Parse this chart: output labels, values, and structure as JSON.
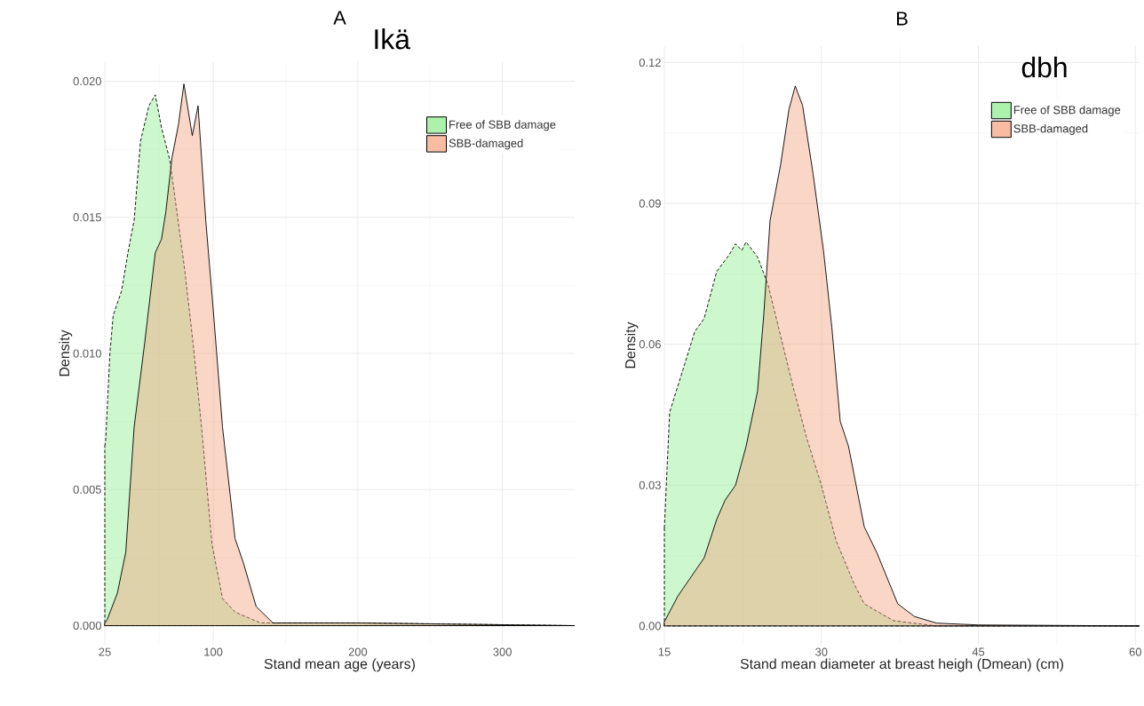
{
  "chart_data": [
    {
      "type": "area",
      "title": "A",
      "annotations": [
        "Ikä"
      ],
      "xlabel": "Stand mean age (years)",
      "ylabel": "Density",
      "xlim": [
        25,
        350
      ],
      "xticks": [
        25,
        100,
        200,
        300
      ],
      "ylim": [
        -0.0007,
        0.0207
      ],
      "yticks": [
        {
          "value": 0,
          "label": "0.000"
        },
        {
          "value": 0.005,
          "label": "0.005"
        },
        {
          "value": 0.01,
          "label": "0.010"
        },
        {
          "value": 0.015,
          "label": "0.015"
        },
        {
          "value": 0.02,
          "label": "0.020"
        }
      ],
      "grid": true,
      "legend": "top right",
      "series": [
        {
          "name": "Free of SBB damage",
          "color": "#90ee90",
          "line_style": "dashed",
          "x": [
            25,
            25.6,
            28.5,
            30.8,
            36.6,
            41,
            45.3,
            49.7,
            55.5,
            59.9,
            64.2,
            70,
            80.2,
            86,
            91.9,
            99.1,
            106.4,
            115.1,
            132.6,
            200,
            350
          ],
          "values": [
            0.0066,
            0.0068,
            0.01,
            0.0114,
            0.0123,
            0.0137,
            0.0149,
            0.0178,
            0.0191,
            0.0195,
            0.0183,
            0.0171,
            0.0131,
            0.0104,
            0.0073,
            0.003,
            0.001,
            0.0005,
            0.0001,
            0.0001,
            0
          ]
        },
        {
          "name": "SBB-damaged",
          "color": "#f4a582",
          "line_style": "solid",
          "x": [
            25,
            26.5,
            33.7,
            39.5,
            45.3,
            52.6,
            59.9,
            64.2,
            67.2,
            71.5,
            75.9,
            79.7,
            85.5,
            89.5,
            94.8,
            100,
            106.4,
            115.1,
            120.9,
            129.7,
            141.3,
            200,
            350
          ],
          "values": [
            0.0001,
            0.0002,
            0.0012,
            0.0027,
            0.0073,
            0.0104,
            0.0137,
            0.0142,
            0.0152,
            0.0172,
            0.0184,
            0.0199,
            0.018,
            0.0191,
            0.0149,
            0.0116,
            0.0073,
            0.0032,
            0.0023,
            0.0007,
            0.0001,
            0.0001,
            0
          ]
        }
      ]
    },
    {
      "type": "area",
      "title": "B",
      "annotations": [
        "dbh"
      ],
      "xlabel": "Stand mean diameter at breast heigh (Dmean) (cm)",
      "ylabel": "Density",
      "xlim": [
        15,
        60.4
      ],
      "xticks": [
        15,
        30,
        45,
        60
      ],
      "ylim": [
        -0.004,
        0.1235
      ],
      "yticks": [
        {
          "value": 0,
          "label": "0.00"
        },
        {
          "value": 0.03,
          "label": "0.03"
        },
        {
          "value": 0.06,
          "label": "0.06"
        },
        {
          "value": 0.09,
          "label": "0.09"
        },
        {
          "value": 0.12,
          "label": "0.12"
        }
      ],
      "grid": true,
      "legend": "top right",
      "series": [
        {
          "name": "Free of SBB damage",
          "color": "#90ee90",
          "line_style": "dashed",
          "x": [
            15,
            15.5,
            16.1,
            16.9,
            17.9,
            18.8,
            20,
            21.2,
            21.8,
            22.4,
            22.8,
            23.9,
            24.9,
            26.1,
            27.3,
            28.6,
            30,
            31.4,
            33.1,
            34.1,
            36.9,
            41,
            60.4
          ],
          "values": [
            0.0209,
            0.0455,
            0.0498,
            0.0555,
            0.0627,
            0.0655,
            0.0755,
            0.0791,
            0.0814,
            0.08,
            0.0818,
            0.0786,
            0.0727,
            0.0618,
            0.0509,
            0.04,
            0.03,
            0.0182,
            0.0091,
            0.0047,
            0.0011,
            0,
            0
          ]
        },
        {
          "name": "SBB-damaged",
          "color": "#f4a582",
          "line_style": "solid",
          "x": [
            15,
            16.3,
            18.8,
            20,
            20.8,
            21.8,
            22.8,
            23.9,
            24.5,
            25.1,
            26.1,
            26.9,
            27.5,
            28.2,
            29.2,
            30.2,
            31,
            31.8,
            32.6,
            34.1,
            35.3,
            37.3,
            38.9,
            41,
            45,
            60.4
          ],
          "values": [
            0.0009,
            0.0064,
            0.0145,
            0.0227,
            0.0268,
            0.03,
            0.0382,
            0.05,
            0.0664,
            0.0864,
            0.0982,
            0.11,
            0.115,
            0.1109,
            0.0964,
            0.08,
            0.0636,
            0.0436,
            0.0382,
            0.0211,
            0.0156,
            0.0047,
            0.002,
            0.0006,
            0.0002,
            0
          ]
        }
      ]
    }
  ]
}
